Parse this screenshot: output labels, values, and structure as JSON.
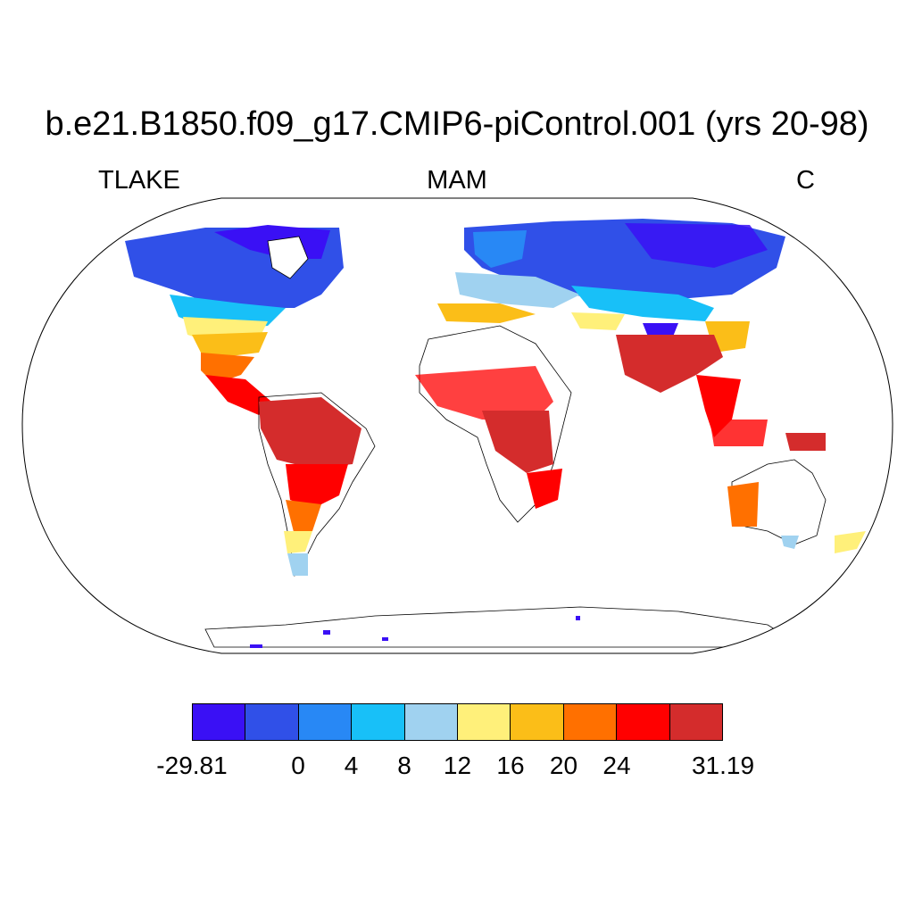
{
  "title": "b.e21.B1850.f09_g17.CMIP6-piControl.001 (yrs 20-98)",
  "variable": "TLAKE",
  "season": "MAM",
  "units": "C",
  "colorbar": {
    "colors": [
      "#3a10f5",
      "#3050e8",
      "#2888f5",
      "#18c0f8",
      "#a0d2f0",
      "#fff07a",
      "#fbbe18",
      "#ff7000",
      "#ff0000",
      "#d42c2c"
    ],
    "labels": [
      "-29.81",
      "",
      "0",
      "4",
      "8",
      "12",
      "16",
      "20",
      "24",
      "",
      "31.19"
    ]
  }
}
